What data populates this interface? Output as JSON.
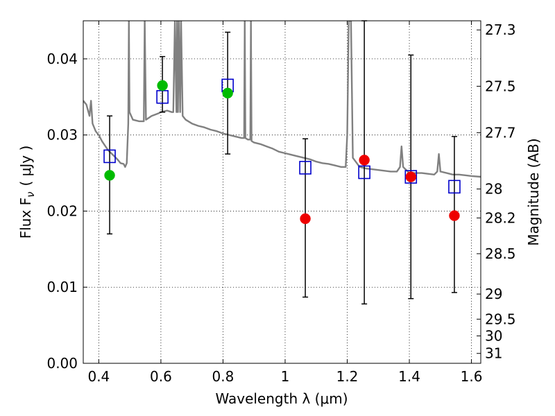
{
  "chart_data": {
    "type": "scatter",
    "xlabel": "Wavelength  λ (μm)",
    "ylabel": "Flux  F",
    "ylabel_subscript": "ν",
    "ylabel_unit": "(  μJy  )",
    "y2label": "Magnitude (AB)",
    "xlim": [
      0.35,
      1.63
    ],
    "ylim": [
      0.0,
      0.045
    ],
    "grid": true,
    "x_ticks": [
      {
        "value": 0.4,
        "label": "0.4"
      },
      {
        "value": 0.6,
        "label": "0.6"
      },
      {
        "value": 0.8,
        "label": "0.8"
      },
      {
        "value": 1.0,
        "label": "1"
      },
      {
        "value": 1.2,
        "label": "1.2"
      },
      {
        "value": 1.4,
        "label": "1.4"
      },
      {
        "value": 1.6,
        "label": "1.6"
      }
    ],
    "y_ticks": [
      {
        "value": 0.0,
        "label": "0.00"
      },
      {
        "value": 0.01,
        "label": "0.01"
      },
      {
        "value": 0.02,
        "label": "0.02"
      },
      {
        "value": 0.03,
        "label": "0.03"
      },
      {
        "value": 0.04,
        "label": "0.04"
      }
    ],
    "y2_ticks": [
      {
        "flux": 0.0438,
        "label": "27.3"
      },
      {
        "flux": 0.0364,
        "label": "27.5"
      },
      {
        "flux": 0.0303,
        "label": "27.7"
      },
      {
        "flux": 0.0229,
        "label": "28"
      },
      {
        "flux": 0.0191,
        "label": "28.2"
      },
      {
        "flux": 0.0144,
        "label": "28.5"
      },
      {
        "flux": 0.0091,
        "label": "29"
      },
      {
        "flux": 0.0058,
        "label": "29.5"
      },
      {
        "flux": 0.0036,
        "label": "30"
      },
      {
        "flux": 0.0013,
        "label": "31"
      }
    ],
    "series": [
      {
        "role": "sed-model",
        "kind": "line",
        "color": "#808080",
        "points": [
          [
            0.35,
            0.0345
          ],
          [
            0.36,
            0.034
          ],
          [
            0.37,
            0.0325
          ],
          [
            0.375,
            0.0345
          ],
          [
            0.38,
            0.0315
          ],
          [
            0.39,
            0.0305
          ],
          [
            0.4,
            0.03
          ],
          [
            0.41,
            0.0292
          ],
          [
            0.42,
            0.0286
          ],
          [
            0.43,
            0.028
          ],
          [
            0.44,
            0.0276
          ],
          [
            0.45,
            0.0272
          ],
          [
            0.46,
            0.0268
          ],
          [
            0.47,
            0.0263
          ],
          [
            0.48,
            0.0262
          ],
          [
            0.485,
            0.0258
          ],
          [
            0.49,
            0.0263
          ],
          [
            0.495,
            0.0315
          ],
          [
            0.497,
            0.045
          ],
          [
            0.499,
            0.033
          ],
          [
            0.51,
            0.032
          ],
          [
            0.53,
            0.0318
          ],
          [
            0.545,
            0.0318
          ],
          [
            0.548,
            0.045
          ],
          [
            0.552,
            0.032
          ],
          [
            0.57,
            0.0325
          ],
          [
            0.59,
            0.0328
          ],
          [
            0.6,
            0.033
          ],
          [
            0.62,
            0.0332
          ],
          [
            0.635,
            0.033
          ],
          [
            0.64,
            0.033
          ],
          [
            0.645,
            0.045
          ],
          [
            0.65,
            0.033
          ],
          [
            0.652,
            0.045
          ],
          [
            0.655,
            0.033
          ],
          [
            0.658,
            0.045
          ],
          [
            0.662,
            0.033
          ],
          [
            0.665,
            0.045
          ],
          [
            0.67,
            0.0325
          ],
          [
            0.68,
            0.032
          ],
          [
            0.7,
            0.0315
          ],
          [
            0.72,
            0.0312
          ],
          [
            0.74,
            0.031
          ],
          [
            0.76,
            0.0307
          ],
          [
            0.78,
            0.0305
          ],
          [
            0.8,
            0.0302
          ],
          [
            0.82,
            0.03
          ],
          [
            0.84,
            0.0298
          ],
          [
            0.86,
            0.0296
          ],
          [
            0.868,
            0.0296
          ],
          [
            0.87,
            0.045
          ],
          [
            0.872,
            0.0296
          ],
          [
            0.88,
            0.0294
          ],
          [
            0.888,
            0.0294
          ],
          [
            0.89,
            0.045
          ],
          [
            0.892,
            0.0292
          ],
          [
            0.9,
            0.029
          ],
          [
            0.92,
            0.0288
          ],
          [
            0.94,
            0.0285
          ],
          [
            0.96,
            0.0282
          ],
          [
            0.98,
            0.0278
          ],
          [
            1.0,
            0.0276
          ],
          [
            1.02,
            0.0274
          ],
          [
            1.04,
            0.0272
          ],
          [
            1.06,
            0.027
          ],
          [
            1.08,
            0.0268
          ],
          [
            1.1,
            0.0265
          ],
          [
            1.12,
            0.0263
          ],
          [
            1.14,
            0.0262
          ],
          [
            1.16,
            0.026
          ],
          [
            1.18,
            0.0258
          ],
          [
            1.195,
            0.0258
          ],
          [
            1.2,
            0.03
          ],
          [
            1.205,
            0.045
          ],
          [
            1.212,
            0.045
          ],
          [
            1.218,
            0.027
          ],
          [
            1.24,
            0.0258
          ],
          [
            1.26,
            0.0256
          ],
          [
            1.28,
            0.0255
          ],
          [
            1.3,
            0.0254
          ],
          [
            1.32,
            0.0253
          ],
          [
            1.34,
            0.0252
          ],
          [
            1.36,
            0.0252
          ],
          [
            1.37,
            0.0258
          ],
          [
            1.375,
            0.0285
          ],
          [
            1.38,
            0.0258
          ],
          [
            1.4,
            0.025
          ],
          [
            1.42,
            0.025
          ],
          [
            1.44,
            0.025
          ],
          [
            1.46,
            0.0249
          ],
          [
            1.48,
            0.0248
          ],
          [
            1.49,
            0.0252
          ],
          [
            1.495,
            0.0275
          ],
          [
            1.5,
            0.0252
          ],
          [
            1.52,
            0.025
          ],
          [
            1.54,
            0.0248
          ],
          [
            1.56,
            0.0248
          ],
          [
            1.58,
            0.0247
          ],
          [
            1.6,
            0.0246
          ],
          [
            1.63,
            0.0245
          ]
        ]
      },
      {
        "role": "model-photometry",
        "kind": "open-square",
        "color": "#0000cc",
        "points": [
          [
            0.435,
            0.0272
          ],
          [
            0.605,
            0.035
          ],
          [
            0.815,
            0.0365
          ],
          [
            1.065,
            0.0257
          ],
          [
            1.255,
            0.0251
          ],
          [
            1.405,
            0.0245
          ],
          [
            1.545,
            0.0232
          ]
        ]
      },
      {
        "role": "observed-optical",
        "kind": "filled-circle",
        "color": "#00bb00",
        "points": [
          {
            "x": 0.435,
            "y": 0.0247,
            "yerr_low": 0.017,
            "yerr_high": 0.0325
          },
          {
            "x": 0.605,
            "y": 0.0365,
            "yerr_low": 0.033,
            "yerr_high": 0.0403
          },
          {
            "x": 0.815,
            "y": 0.0355,
            "yerr_low": 0.0275,
            "yerr_high": 0.0435
          }
        ]
      },
      {
        "role": "observed-nir",
        "kind": "filled-circle",
        "color": "#ee0000",
        "points": [
          {
            "x": 1.065,
            "y": 0.019,
            "yerr_low": 0.0087,
            "yerr_high": 0.0295
          },
          {
            "x": 1.255,
            "y": 0.0267,
            "yerr_low": 0.0078,
            "yerr_high": 0.045
          },
          {
            "x": 1.405,
            "y": 0.0245,
            "yerr_low": 0.0085,
            "yerr_high": 0.0405
          },
          {
            "x": 1.545,
            "y": 0.0194,
            "yerr_low": 0.0093,
            "yerr_high": 0.0298
          }
        ]
      }
    ]
  }
}
